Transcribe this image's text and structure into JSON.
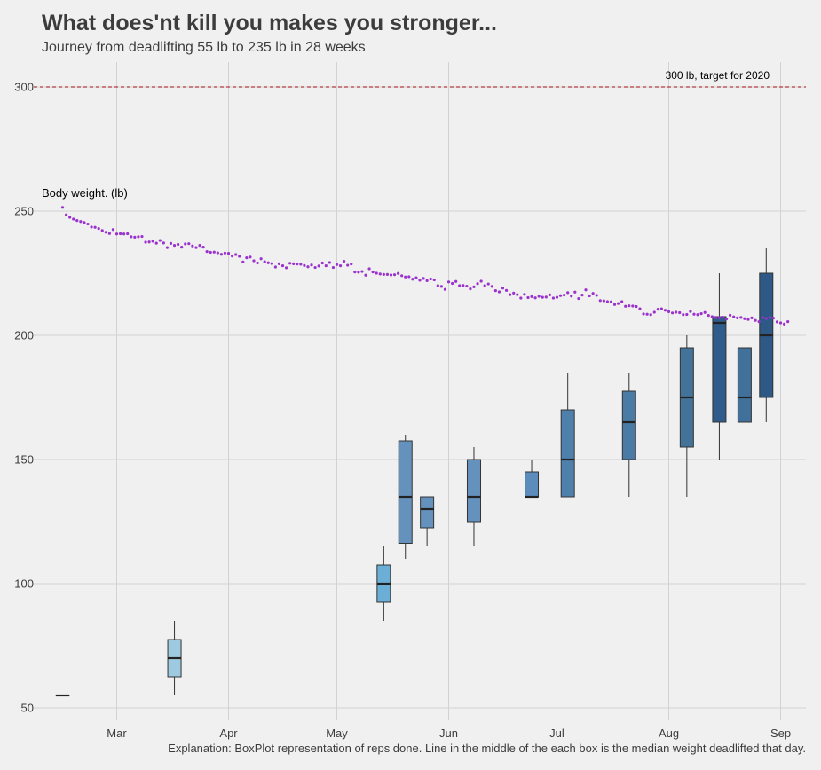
{
  "title": "What does'nt kill you makes you stronger...",
  "subtitle": "Journey from deadlifting 55 lb to 235 lb in 28 weeks",
  "caption": "Explanation: BoxPlot representation of reps done. Line in the middle of the each box is the median weight deadlifted that day.",
  "chart_data": {
    "type": "box",
    "ylim": [
      45,
      310
    ],
    "yticks": [
      50,
      100,
      150,
      200,
      250,
      300
    ],
    "xlim": [
      "2020-02-07",
      "2020-09-08"
    ],
    "xticks": [
      {
        "date": "2020-03-01",
        "label": "Mar"
      },
      {
        "date": "2020-04-01",
        "label": "Apr"
      },
      {
        "date": "2020-05-01",
        "label": "May"
      },
      {
        "date": "2020-06-01",
        "label": "Jun"
      },
      {
        "date": "2020-07-01",
        "label": "Jul"
      },
      {
        "date": "2020-08-01",
        "label": "Aug"
      },
      {
        "date": "2020-09-01",
        "label": "Sep"
      }
    ],
    "grid": true,
    "target": {
      "value": 300,
      "label": "300 lb, target for 2020",
      "color": "#a50f15"
    },
    "body_weight": {
      "label": "Body weight. (lb)",
      "color": "#9a32cd",
      "points": [
        [
          "2020-02-15",
          251.5
        ],
        [
          "2020-02-16",
          248.5
        ],
        [
          "2020-02-17",
          247.5
        ],
        [
          "2020-02-18",
          246.8
        ],
        [
          "2020-02-19",
          246.2
        ],
        [
          "2020-02-20",
          245.8
        ],
        [
          "2020-02-21",
          245.4
        ],
        [
          "2020-02-22",
          244.8
        ],
        [
          "2020-02-23",
          243.6
        ],
        [
          "2020-02-24",
          243.5
        ],
        [
          "2020-02-25",
          243.0
        ],
        [
          "2020-02-26",
          242.2
        ],
        [
          "2020-02-27",
          241.5
        ],
        [
          "2020-02-28",
          241.0
        ],
        [
          "2020-02-29",
          242.6
        ],
        [
          "2020-03-01",
          240.8
        ],
        [
          "2020-03-02",
          240.9
        ],
        [
          "2020-03-03",
          240.8
        ],
        [
          "2020-03-04",
          240.9
        ],
        [
          "2020-03-05",
          239.7
        ],
        [
          "2020-03-06",
          239.5
        ],
        [
          "2020-03-07",
          239.7
        ],
        [
          "2020-03-08",
          239.8
        ],
        [
          "2020-03-09",
          237.5
        ],
        [
          "2020-03-10",
          237.6
        ],
        [
          "2020-03-11",
          237.9
        ],
        [
          "2020-03-12",
          237.1
        ],
        [
          "2020-03-13",
          238.2
        ],
        [
          "2020-03-14",
          237.2
        ],
        [
          "2020-03-15",
          235.3
        ],
        [
          "2020-03-16",
          237.0
        ],
        [
          "2020-03-17",
          236.2
        ],
        [
          "2020-03-18",
          236.6
        ],
        [
          "2020-03-19",
          235.5
        ],
        [
          "2020-03-20",
          236.8
        ],
        [
          "2020-03-21",
          236.9
        ],
        [
          "2020-03-22",
          236.0
        ],
        [
          "2020-03-23",
          235.3
        ],
        [
          "2020-03-24",
          236.2
        ],
        [
          "2020-03-25",
          235.5
        ],
        [
          "2020-03-26",
          233.7
        ],
        [
          "2020-03-27",
          233.4
        ],
        [
          "2020-03-28",
          233.5
        ],
        [
          "2020-03-29",
          233.2
        ],
        [
          "2020-03-30",
          232.6
        ],
        [
          "2020-03-31",
          233.1
        ],
        [
          "2020-04-01",
          233.0
        ],
        [
          "2020-04-02",
          231.9
        ],
        [
          "2020-04-03",
          232.5
        ],
        [
          "2020-04-04",
          231.8
        ],
        [
          "2020-04-05",
          229.5
        ],
        [
          "2020-04-06",
          231.2
        ],
        [
          "2020-04-07",
          231.5
        ],
        [
          "2020-04-08",
          230.0
        ],
        [
          "2020-04-09",
          229.1
        ],
        [
          "2020-04-10",
          230.8
        ],
        [
          "2020-04-11",
          229.6
        ],
        [
          "2020-04-12",
          229.2
        ],
        [
          "2020-04-13",
          228.9
        ],
        [
          "2020-04-14",
          227.5
        ],
        [
          "2020-04-15",
          228.8
        ],
        [
          "2020-04-16",
          228.0
        ],
        [
          "2020-04-17",
          227.2
        ],
        [
          "2020-04-18",
          229.0
        ],
        [
          "2020-04-19",
          228.8
        ],
        [
          "2020-04-20",
          228.7
        ],
        [
          "2020-04-21",
          228.6
        ],
        [
          "2020-04-22",
          228.1
        ],
        [
          "2020-04-23",
          227.6
        ],
        [
          "2020-04-24",
          228.3
        ],
        [
          "2020-04-25",
          227.3
        ],
        [
          "2020-04-26",
          227.9
        ],
        [
          "2020-04-27",
          229.1
        ],
        [
          "2020-04-28",
          228.0
        ],
        [
          "2020-04-29",
          229.3
        ],
        [
          "2020-04-30",
          227.3
        ],
        [
          "2020-05-01",
          228.5
        ],
        [
          "2020-05-02",
          228.0
        ],
        [
          "2020-05-03",
          229.8
        ],
        [
          "2020-05-04",
          228.2
        ],
        [
          "2020-05-05",
          228.7
        ],
        [
          "2020-05-06",
          225.5
        ],
        [
          "2020-05-07",
          225.4
        ],
        [
          "2020-05-08",
          225.7
        ],
        [
          "2020-05-09",
          224.2
        ],
        [
          "2020-05-10",
          226.8
        ],
        [
          "2020-05-11",
          225.5
        ],
        [
          "2020-05-12",
          225.0
        ],
        [
          "2020-05-13",
          224.7
        ],
        [
          "2020-05-14",
          224.5
        ],
        [
          "2020-05-15",
          224.5
        ],
        [
          "2020-05-16",
          224.3
        ],
        [
          "2020-05-17",
          224.4
        ],
        [
          "2020-05-18",
          224.9
        ],
        [
          "2020-05-19",
          224.0
        ],
        [
          "2020-05-20",
          223.5
        ],
        [
          "2020-05-21",
          223.6
        ],
        [
          "2020-05-22",
          222.6
        ],
        [
          "2020-05-23",
          223.2
        ],
        [
          "2020-05-24",
          222.2
        ],
        [
          "2020-05-25",
          222.9
        ],
        [
          "2020-05-26",
          222.0
        ],
        [
          "2020-05-27",
          222.7
        ],
        [
          "2020-05-28",
          222.3
        ],
        [
          "2020-05-29",
          220.0
        ],
        [
          "2020-05-30",
          219.7
        ],
        [
          "2020-05-31",
          218.5
        ],
        [
          "2020-06-01",
          221.5
        ],
        [
          "2020-06-02",
          220.9
        ],
        [
          "2020-06-03",
          221.7
        ],
        [
          "2020-06-04",
          220.0
        ],
        [
          "2020-06-05",
          220.1
        ],
        [
          "2020-06-06",
          219.8
        ],
        [
          "2020-06-07",
          218.7
        ],
        [
          "2020-06-08",
          219.5
        ],
        [
          "2020-06-09",
          220.8
        ],
        [
          "2020-06-10",
          221.8
        ],
        [
          "2020-06-11",
          220.0
        ],
        [
          "2020-06-12",
          220.7
        ],
        [
          "2020-06-13",
          219.7
        ],
        [
          "2020-06-14",
          218.0
        ],
        [
          "2020-06-15",
          217.5
        ],
        [
          "2020-06-16",
          219.0
        ],
        [
          "2020-06-17",
          218.1
        ],
        [
          "2020-06-18",
          216.4
        ],
        [
          "2020-06-19",
          217.0
        ],
        [
          "2020-06-20",
          216.4
        ],
        [
          "2020-06-21",
          215.0
        ],
        [
          "2020-06-22",
          216.5
        ],
        [
          "2020-06-23",
          215.2
        ],
        [
          "2020-06-24",
          215.6
        ],
        [
          "2020-06-25",
          215.1
        ],
        [
          "2020-06-26",
          215.7
        ],
        [
          "2020-06-27",
          215.3
        ],
        [
          "2020-06-28",
          215.4
        ],
        [
          "2020-06-29",
          216.3
        ],
        [
          "2020-06-30",
          215.0
        ],
        [
          "2020-07-01",
          215.3
        ],
        [
          "2020-07-02",
          216.0
        ],
        [
          "2020-07-03",
          216.2
        ],
        [
          "2020-07-04",
          217.2
        ],
        [
          "2020-07-05",
          215.8
        ],
        [
          "2020-07-06",
          217.4
        ],
        [
          "2020-07-07",
          214.8
        ],
        [
          "2020-07-08",
          216.2
        ],
        [
          "2020-07-09",
          218.3
        ],
        [
          "2020-07-10",
          215.9
        ],
        [
          "2020-07-11",
          216.9
        ],
        [
          "2020-07-12",
          216.1
        ],
        [
          "2020-07-13",
          214.0
        ],
        [
          "2020-07-14",
          213.9
        ],
        [
          "2020-07-15",
          213.6
        ],
        [
          "2020-07-16",
          213.5
        ],
        [
          "2020-07-17",
          212.4
        ],
        [
          "2020-07-18",
          212.8
        ],
        [
          "2020-07-19",
          213.6
        ],
        [
          "2020-07-20",
          211.7
        ],
        [
          "2020-07-21",
          211.9
        ],
        [
          "2020-07-22",
          211.8
        ],
        [
          "2020-07-23",
          211.6
        ],
        [
          "2020-07-24",
          210.7
        ],
        [
          "2020-07-25",
          208.6
        ],
        [
          "2020-07-26",
          208.5
        ],
        [
          "2020-07-27",
          208.3
        ],
        [
          "2020-07-28",
          209.3
        ],
        [
          "2020-07-29",
          210.5
        ],
        [
          "2020-07-30",
          210.7
        ],
        [
          "2020-07-31",
          210.1
        ],
        [
          "2020-08-01",
          209.5
        ],
        [
          "2020-08-02",
          209.0
        ],
        [
          "2020-08-03",
          209.3
        ],
        [
          "2020-08-04",
          209.1
        ],
        [
          "2020-08-05",
          208.3
        ],
        [
          "2020-08-06",
          208.4
        ],
        [
          "2020-08-07",
          209.6
        ],
        [
          "2020-08-08",
          208.5
        ],
        [
          "2020-08-09",
          208.3
        ],
        [
          "2020-08-10",
          208.7
        ],
        [
          "2020-08-11",
          209.2
        ],
        [
          "2020-08-12",
          208.0
        ],
        [
          "2020-08-13",
          207.5
        ],
        [
          "2020-08-14",
          207.2
        ],
        [
          "2020-08-15",
          207.1
        ],
        [
          "2020-08-16",
          207.3
        ],
        [
          "2020-08-17",
          206.6
        ],
        [
          "2020-08-18",
          208.1
        ],
        [
          "2020-08-19",
          207.4
        ],
        [
          "2020-08-20",
          207.0
        ],
        [
          "2020-08-21",
          207.2
        ],
        [
          "2020-08-22",
          206.7
        ],
        [
          "2020-08-23",
          206.4
        ],
        [
          "2020-08-24",
          207.0
        ],
        [
          "2020-08-25",
          206.0
        ],
        [
          "2020-08-26",
          205.5
        ],
        [
          "2020-08-27",
          207.1
        ],
        [
          "2020-08-28",
          206.8
        ],
        [
          "2020-08-29",
          207.2
        ],
        [
          "2020-08-30",
          206.9
        ],
        [
          "2020-08-31",
          205.4
        ],
        [
          "2020-09-01",
          205.0
        ],
        [
          "2020-09-02",
          204.5
        ],
        [
          "2020-09-03",
          205.5
        ]
      ]
    },
    "boxes": [
      {
        "date": "2020-02-15",
        "min": 55,
        "q1": 55,
        "median": 55,
        "q3": 55,
        "max": 55,
        "color": "#c6dbef"
      },
      {
        "date": "2020-03-17",
        "min": 55,
        "q1": 62.5,
        "median": 70,
        "q3": 77.5,
        "max": 85,
        "color": "#9ecae1"
      },
      {
        "date": "2020-05-14",
        "min": 85,
        "q1": 92.5,
        "median": 100,
        "q3": 107.5,
        "max": 115,
        "color": "#6baed6"
      },
      {
        "date": "2020-05-20",
        "min": 110,
        "q1": 116.25,
        "median": 135,
        "q3": 157.5,
        "max": 160,
        "color": "#6592bd"
      },
      {
        "date": "2020-05-26",
        "min": 115,
        "q1": 122.5,
        "median": 130,
        "q3": 135,
        "max": 135,
        "color": "#6592bd"
      },
      {
        "date": "2020-06-08",
        "min": 115,
        "q1": 125,
        "median": 135,
        "q3": 150,
        "max": 155,
        "color": "#6592bd"
      },
      {
        "date": "2020-06-24",
        "min": 135,
        "q1": 135,
        "median": 135,
        "q3": 145,
        "max": 150,
        "color": "#5b8cbb"
      },
      {
        "date": "2020-07-04",
        "min": 135,
        "q1": 135,
        "median": 150,
        "q3": 170,
        "max": 185,
        "color": "#4f80ac"
      },
      {
        "date": "2020-07-21",
        "min": 135,
        "q1": 150,
        "median": 165,
        "q3": 177.5,
        "max": 185,
        "color": "#4a7ba5"
      },
      {
        "date": "2020-08-06",
        "min": 135,
        "q1": 155,
        "median": 175,
        "q3": 195,
        "max": 200,
        "color": "#437399"
      },
      {
        "date": "2020-08-15",
        "min": 150,
        "q1": 165,
        "median": 205,
        "q3": 207.5,
        "max": 225,
        "color": "#2f5c8a"
      },
      {
        "date": "2020-08-22",
        "min": 165,
        "q1": 165,
        "median": 175,
        "q3": 195,
        "max": 195,
        "color": "#41719a"
      },
      {
        "date": "2020-08-28",
        "min": 165,
        "q1": 175,
        "median": 200,
        "q3": 225,
        "max": 235,
        "color": "#2e5986"
      }
    ]
  }
}
